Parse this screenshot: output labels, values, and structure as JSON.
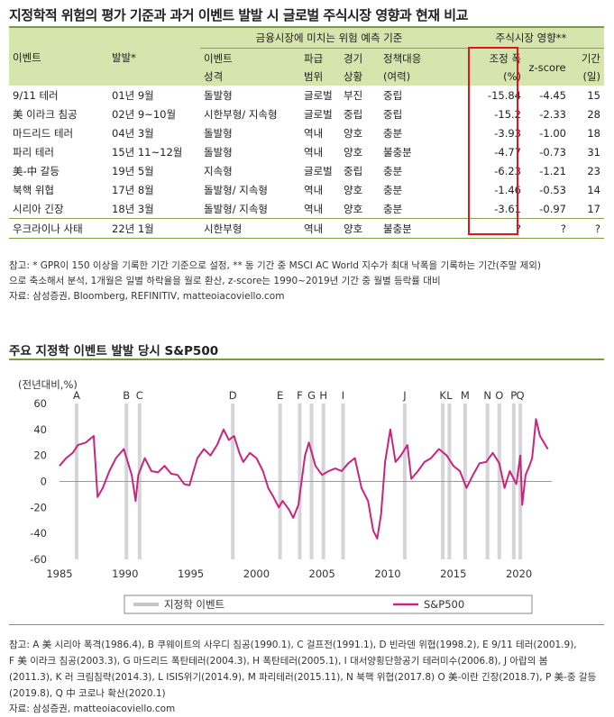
{
  "table": {
    "title": "지정학적 위험의 평가 기준과 과거 이벤트 발발 시 글로벌 주식시장 영향과 현재 비교",
    "header": {
      "group_risk": "금융시장에 미치는 위험 예측 기준",
      "group_impact": "주식시장 영향**",
      "event": "이벤트",
      "date": "발발*",
      "ev_type_1": "이벤트",
      "ev_type_2": "성격",
      "scope_1": "파급",
      "scope_2": "범위",
      "econ_1": "경기",
      "econ_2": "상황",
      "policy_1": "정책대응",
      "policy_2": "(여력)",
      "drop_1": "조정 폭",
      "drop_2": "(%)",
      "zscore": "z-score",
      "period_1": "기간",
      "period_2": "(일)"
    },
    "rows": [
      {
        "event": "9/11 테러",
        "date": "01년 9월",
        "type": "돌발형",
        "scope": "글로벌",
        "econ": "부진",
        "policy": "중립",
        "drop": "-15.84",
        "z": "-4.45",
        "days": "15"
      },
      {
        "event": "美 이라크 침공",
        "date": "02년 9~10월",
        "type": "시한부형/ 지속형",
        "scope": "글로벌",
        "econ": "중립",
        "policy": "중립",
        "drop": "-15.2",
        "z": "-2.33",
        "days": "28"
      },
      {
        "event": "마드리드 테러",
        "date": "04년 3월",
        "type": "돌발형",
        "scope": "역내",
        "econ": "양호",
        "policy": "충분",
        "drop": "-3.93",
        "z": "-1.00",
        "days": "18"
      },
      {
        "event": "파리 테러",
        "date": "15년 11~12월",
        "type": "돌발형",
        "scope": "역내",
        "econ": "양호",
        "policy": "불충분",
        "drop": "-4.77",
        "z": "-0.73",
        "days": "31"
      },
      {
        "event": "美-中 갈등",
        "date": "19년 5월",
        "type": "지속형",
        "scope": "글로벌",
        "econ": "중립",
        "policy": "충분",
        "drop": "-6.23",
        "z": "-1.21",
        "days": "23"
      },
      {
        "event": "북핵 위협",
        "date": "17년 8월",
        "type": "돌발형/ 지속형",
        "scope": "역내",
        "econ": "양호",
        "policy": "충분",
        "drop": "-1.46",
        "z": "-0.53",
        "days": "14"
      },
      {
        "event": "시리아 긴장",
        "date": "18년 3월",
        "type": "돌발형/ 지속형",
        "scope": "역내",
        "econ": "양호",
        "policy": "충분",
        "drop": "-3.61",
        "z": "-0.97",
        "days": "17"
      },
      {
        "event": "우크라이나 사태",
        "date": "22년 1월",
        "type": "시한부형",
        "scope": "역내",
        "econ": "양호",
        "policy": "불충분",
        "drop": "?",
        "z": "?",
        "days": "?"
      }
    ],
    "note1": "참고: * GPR이 150 이상을 기록한 기간 기준으로 설정, ** 동 기간 중 MSCI AC World 지수가 최대 낙폭을 기록하는 기간(주말 제외)",
    "note2": "으로 축소해서 분석, 1개월은 일별 하락율을 월로 환산, z-score는 1990~2019년 기간 중 월별 등락률 대비",
    "source": "자료: 삼성증권, Bloomberg, REFINITIV, matteoiacoviello.com"
  },
  "chart_data": {
    "type": "line",
    "title": "주요 지정학 이벤트 발발 당시 S&P500",
    "ylabel": "(전년대비,%)",
    "ylim": [
      -60,
      60
    ],
    "yticks": [
      -60,
      -40,
      -20,
      0,
      20,
      40,
      60
    ],
    "xlim": [
      1985,
      2022.5
    ],
    "xticks": [
      1985,
      1990,
      1995,
      2000,
      2005,
      2010,
      2015,
      2020
    ],
    "series": [
      {
        "name": "S&P500",
        "color": "#c8267e",
        "x": [
          1985.0,
          1985.5,
          1986.0,
          1986.4,
          1987.0,
          1987.6,
          1987.9,
          1988.3,
          1988.8,
          1989.3,
          1989.9,
          1990.5,
          1990.8,
          1991.0,
          1991.5,
          1992.0,
          1992.5,
          1993.0,
          1993.5,
          1994.0,
          1994.5,
          1994.9,
          1995.5,
          1996.0,
          1996.5,
          1997.0,
          1997.5,
          1997.9,
          1998.3,
          1998.7,
          1999.0,
          1999.5,
          2000.0,
          2000.5,
          2000.9,
          2001.3,
          2001.7,
          2002.0,
          2002.5,
          2002.8,
          2003.2,
          2003.7,
          2004.0,
          2004.5,
          2005.0,
          2005.5,
          2006.0,
          2006.5,
          2007.0,
          2007.5,
          2008.0,
          2008.5,
          2008.9,
          2009.2,
          2009.5,
          2009.8,
          2010.2,
          2010.6,
          2011.0,
          2011.5,
          2011.8,
          2012.3,
          2012.8,
          2013.3,
          2013.9,
          2014.5,
          2015.0,
          2015.5,
          2016.0,
          2016.5,
          2017.0,
          2017.5,
          2018.0,
          2018.5,
          2018.9,
          2019.3,
          2019.8,
          2020.1,
          2020.25,
          2020.5,
          2020.8,
          2021.0,
          2021.3,
          2021.6,
          2021.9,
          2022.2
        ],
        "values": [
          12,
          18,
          22,
          28,
          30,
          35,
          -12,
          -5,
          8,
          18,
          25,
          5,
          -15,
          5,
          18,
          8,
          7,
          12,
          6,
          5,
          -2,
          -3,
          18,
          25,
          20,
          28,
          40,
          32,
          35,
          22,
          15,
          22,
          18,
          8,
          -5,
          -12,
          -20,
          -15,
          -22,
          -28,
          -18,
          20,
          30,
          12,
          5,
          8,
          10,
          8,
          14,
          18,
          -5,
          -15,
          -38,
          -44,
          -25,
          15,
          40,
          15,
          20,
          28,
          2,
          8,
          15,
          18,
          25,
          20,
          12,
          8,
          -5,
          5,
          14,
          15,
          22,
          14,
          -5,
          8,
          -2,
          20,
          -18,
          5,
          12,
          18,
          48,
          35,
          30,
          25
        ],
        "values_are": "year-over-year %"
      }
    ],
    "events": [
      {
        "label": "A",
        "x": 1986.3
      },
      {
        "label": "B",
        "x": 1990.1
      },
      {
        "label": "C",
        "x": 1991.1
      },
      {
        "label": "D",
        "x": 1998.2
      },
      {
        "label": "E",
        "x": 2001.8
      },
      {
        "label": "F",
        "x": 2003.3
      },
      {
        "label": "G",
        "x": 2004.2
      },
      {
        "label": "H",
        "x": 2005.1
      },
      {
        "label": "I",
        "x": 2006.6
      },
      {
        "label": "J",
        "x": 2011.3
      },
      {
        "label": "K",
        "x": 2014.2
      },
      {
        "label": "L",
        "x": 2014.7
      },
      {
        "label": "M",
        "x": 2015.9
      },
      {
        "label": "N",
        "x": 2017.6
      },
      {
        "label": "O",
        "x": 2018.5
      },
      {
        "label": "P",
        "x": 2019.6
      },
      {
        "label": "Q",
        "x": 2020.1
      }
    ],
    "legend": {
      "event": "지정학 이벤트",
      "series": "S&P500",
      "event_color": "#c6c6cc"
    },
    "note1": "참고: A 美 시리아 폭격(1986.4), B 쿠웨이트의 사우디 침공(1990.1), C 걸프전(1991.1), D 빈라덴 위협(1998.2), E 9/11 테러(2001.9),",
    "note2": "F 美 이라크 침공(2003.3), G 마드리드 폭탄테러(2004.3), H 폭탄테러(2005.1), I 대서양횡단항공기 테러미수(2006.8), J 아랍의 봄",
    "note3": "(2011.3), K 러 크림침략(2014.3), L ISIS위기(2014.9), M 파리테러(2015.11), N 북핵 위협(2017.8) O 美-이란 긴장(2018.7), P 美-중 갈등",
    "note4": "(2019.8), Q 中 코로나 확산(2020.1)",
    "source": "자료: 삼성증권, matteoiacoviello.com"
  }
}
